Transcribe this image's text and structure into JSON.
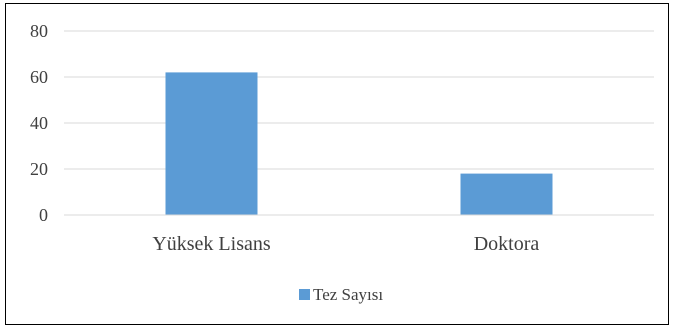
{
  "chart_data": {
    "type": "bar",
    "title": "",
    "xlabel": "",
    "ylabel": "",
    "categories": [
      "Yüksek Lisans",
      "Doktora"
    ],
    "series": [
      {
        "name": "Tez Sayısı",
        "values": [
          62,
          18
        ],
        "color": "#5b9bd5"
      }
    ],
    "ylim": [
      0,
      80
    ],
    "yticks": [
      0,
      20,
      40,
      60,
      80
    ],
    "grid": true,
    "gridline_color": "#d9d9d9",
    "legend_position": "bottom"
  }
}
